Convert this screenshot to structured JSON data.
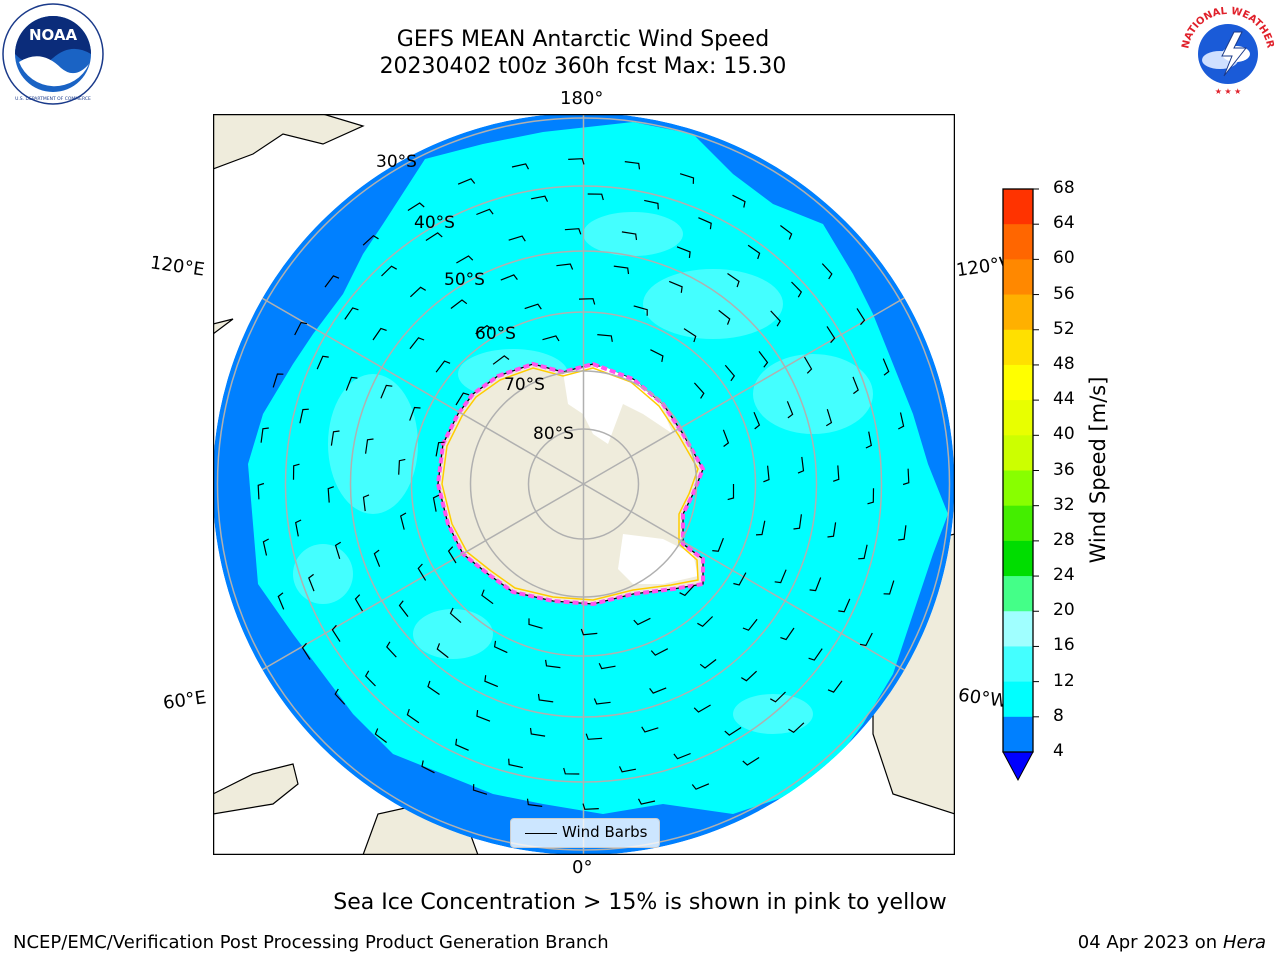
{
  "header": {
    "title_line1": "GEFS MEAN Antarctic Wind Speed",
    "title_line2": "20230402 t00z 360h fcst   Max: 15.30"
  },
  "logos": {
    "left": {
      "name": "NOAA",
      "text": "NOAA",
      "ring_text": "NATIONAL OCEANIC AND ATMOSPHERIC ADMINISTRATION · U.S. DEPARTMENT OF COMMERCE"
    },
    "right": {
      "name": "National Weather Service",
      "ring_text": "NATIONAL WEATHER SERVICE"
    }
  },
  "map": {
    "projection": "south polar stereographic",
    "longitude_labels": [
      "180°",
      "120°E",
      "120°W",
      "60°E",
      "60°W",
      "0°"
    ],
    "latitude_labels": [
      "30°S",
      "40°S",
      "50°S",
      "60°S",
      "70°S",
      "80°S"
    ],
    "legend_label": "Wind Barbs"
  },
  "colorbar": {
    "label": "Wind Speed [m/s]",
    "ticks": [
      "68",
      "64",
      "60",
      "56",
      "52",
      "48",
      "44",
      "40",
      "36",
      "32",
      "28",
      "24",
      "20",
      "16",
      "12",
      "8",
      "4"
    ],
    "colors": [
      "#ff0000",
      "#ff3300",
      "#ff6600",
      "#ff8800",
      "#ffb000",
      "#ffe000",
      "#ffff00",
      "#e8ff00",
      "#ccff00",
      "#88ff00",
      "#44ee00",
      "#00dd00",
      "#44ff88",
      "#a0ffff",
      "#44ffff",
      "#00ffff",
      "#0080ff"
    ],
    "extend_color": "#0000ff"
  },
  "colors": {
    "land": "#efecdc",
    "ocean_low": "#0080ff",
    "ocean_mid": "#00ffff",
    "ocean_high": "#44ffff",
    "grid": "#b0b0b0",
    "sea_ice": "#ff55ee"
  },
  "footer": {
    "note": "Sea Ice Concentration > 15% is shown in pink to yellow",
    "credit": "NCEP/EMC/Verification Post Processing Product Generation Branch",
    "date": "04 Apr 2023 on ",
    "machine": "Hera"
  }
}
